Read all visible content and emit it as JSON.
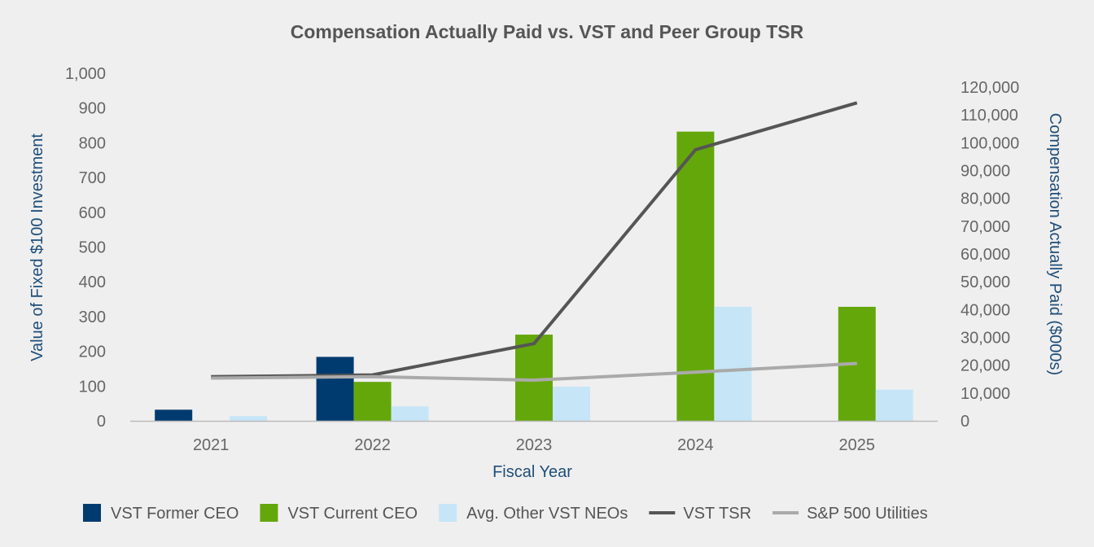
{
  "chart_data": {
    "type": "bar",
    "title": "Compensation Actually Paid vs. VST and Peer Group TSR",
    "xlabel": "Fiscal Year",
    "ylabel": "Value of Fixed $100 Investment",
    "y2label": "Compensation Actually Paid ($000s)",
    "categories": [
      "2021",
      "2022",
      "2023",
      "2024",
      "2025"
    ],
    "ylim": [
      0,
      1000
    ],
    "y_ticks": [
      "0",
      "100",
      "200",
      "300",
      "400",
      "500",
      "600",
      "700",
      "800",
      "900",
      "1,000"
    ],
    "y_tick_values": [
      0,
      100,
      200,
      300,
      400,
      500,
      600,
      700,
      800,
      900,
      1000
    ],
    "y2lim": [
      0,
      125000
    ],
    "y2_ticks": [
      "0",
      "10,000",
      "20,000",
      "30,000",
      "40,000",
      "50,000",
      "60,000",
      "70,000",
      "80,000",
      "90,000",
      "100,000",
      "110,000",
      "120,000"
    ],
    "y2_tick_values": [
      0,
      10000,
      20000,
      30000,
      40000,
      50000,
      60000,
      70000,
      80000,
      90000,
      100000,
      110000,
      120000
    ],
    "bar_series": [
      {
        "name": "VST Former CEO",
        "color": "#003b6f",
        "axis": "right",
        "values": [
          4000,
          23000,
          null,
          null,
          null
        ]
      },
      {
        "name": "VST Current CEO",
        "color": "#64a70b",
        "axis": "right",
        "values": [
          null,
          14000,
          31000,
          104000,
          41000
        ]
      },
      {
        "name": "Avg. Other VST NEOs",
        "color": "#c6e6f7",
        "axis": "right",
        "values": [
          1700,
          5200,
          12300,
          41000,
          11200
        ]
      }
    ],
    "line_series": [
      {
        "name": "VST TSR",
        "color": "#555555",
        "axis": "left",
        "values": [
          127,
          132,
          222,
          780,
          915
        ]
      },
      {
        "name": "S&P 500 Utilities",
        "color": "#aaaaaa",
        "axis": "left",
        "values": [
          123,
          127,
          117,
          140,
          165
        ]
      }
    ],
    "legend_position": "bottom",
    "grid": false
  }
}
